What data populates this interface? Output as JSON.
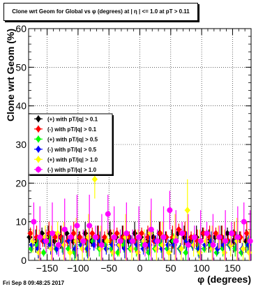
{
  "title": "Clone wrt Geom for Global vs φ (degrees) at | η | <= 1.0 at pT > 0.11",
  "timestamp": "Fri Sep  8 09:48:25 2017",
  "chart_data": {
    "type": "scatter",
    "xlabel": "φ (degrees)",
    "ylabel": "Clone wrt Geom (%)",
    "xlim": [
      -180,
      180
    ],
    "ylim": [
      0,
      60
    ],
    "x_ticks": [
      -150,
      -100,
      -50,
      0,
      50,
      100,
      150
    ],
    "y_ticks": [
      0,
      10,
      20,
      30,
      40,
      50,
      60
    ],
    "grid": true,
    "legend_position": "left-middle",
    "series": [
      {
        "name": "(+) with pT/|q| > 0.1",
        "color": "#000000",
        "marker": "diamond",
        "x": [
          -175,
          -165,
          -155,
          -145,
          -135,
          -125,
          -115,
          -105,
          -95,
          -85,
          -75,
          -65,
          -55,
          -45,
          -35,
          -25,
          -15,
          -5,
          5,
          15,
          25,
          35,
          45,
          55,
          65,
          75,
          85,
          95,
          105,
          115,
          125,
          135,
          145,
          155,
          165,
          175
        ],
        "y": [
          6,
          5,
          7,
          6,
          5,
          6,
          7,
          5,
          6,
          7,
          5,
          6,
          5,
          7,
          6,
          6,
          5,
          7,
          6,
          5,
          6,
          7,
          6,
          5,
          7,
          6,
          5,
          6,
          7,
          5,
          6,
          6,
          7,
          5,
          6,
          5
        ]
      },
      {
        "name": "(-) with pT/|q| > 0.1",
        "color": "#ff0000",
        "marker": "diamond",
        "x": [
          -175,
          -165,
          -155,
          -145,
          -135,
          -125,
          -115,
          -105,
          -95,
          -85,
          -75,
          -65,
          -55,
          -45,
          -35,
          -25,
          -15,
          -5,
          5,
          15,
          25,
          35,
          45,
          55,
          65,
          75,
          85,
          95,
          105,
          115,
          125,
          135,
          145,
          155,
          165,
          175
        ],
        "y": [
          7,
          6,
          5,
          7,
          6,
          6,
          5,
          7,
          6,
          5,
          7,
          6,
          6,
          5,
          7,
          6,
          6,
          5,
          7,
          6,
          5,
          7,
          6,
          6,
          8,
          7,
          6,
          5,
          7,
          6,
          7,
          6,
          5,
          7,
          6,
          7
        ]
      },
      {
        "name": "(+) with pT/|q| > 0.5",
        "color": "#00ff00",
        "marker": "diamond",
        "x": [
          -175,
          -165,
          -155,
          -145,
          -135,
          -125,
          -115,
          -105,
          -95,
          -85,
          -75,
          -65,
          -55,
          -45,
          -35,
          -25,
          -15,
          -5,
          5,
          15,
          25,
          35,
          45,
          55,
          65,
          75,
          85,
          95,
          105,
          115,
          125,
          135,
          145,
          155,
          165,
          175
        ],
        "y": [
          3,
          4,
          2,
          5,
          3,
          4,
          3,
          2,
          4,
          3,
          5,
          3,
          4,
          3,
          2,
          4,
          3,
          3,
          4,
          2,
          3,
          4,
          3,
          5,
          3,
          2,
          4,
          3,
          3,
          4,
          2,
          3,
          4,
          3,
          2,
          4
        ]
      },
      {
        "name": "(-) with pT/|q| > 0.5",
        "color": "#0000ff",
        "marker": "diamond",
        "x": [
          -175,
          -165,
          -155,
          -145,
          -135,
          -125,
          -115,
          -105,
          -95,
          -85,
          -75,
          -65,
          -55,
          -45,
          -35,
          -25,
          -15,
          -5,
          5,
          15,
          25,
          35,
          45,
          55,
          65,
          75,
          85,
          95,
          105,
          115,
          125,
          135,
          145,
          155,
          165,
          175
        ],
        "y": [
          4,
          3,
          5,
          4,
          3,
          4,
          5,
          3,
          4,
          3,
          4,
          5,
          3,
          4,
          4,
          3,
          5,
          4,
          3,
          4,
          5,
          3,
          4,
          4,
          3,
          5,
          4,
          3,
          4,
          5,
          3,
          4,
          4,
          5,
          3,
          4
        ]
      },
      {
        "name": "(+) with pT/|q| > 1.0",
        "color": "#ffff00",
        "marker": "diamond",
        "x": [
          -175,
          -165,
          -155,
          -145,
          -135,
          -125,
          -115,
          -105,
          -95,
          -85,
          -75,
          -65,
          -55,
          -45,
          -35,
          -25,
          -15,
          -5,
          5,
          15,
          25,
          35,
          45,
          55,
          65,
          75,
          85,
          95,
          105,
          115,
          125,
          135,
          145,
          155,
          165,
          175
        ],
        "y": [
          5,
          2,
          6,
          3,
          7,
          4,
          2,
          5,
          3,
          6,
          21,
          3,
          5,
          2,
          4,
          6,
          3,
          2,
          5,
          7,
          3,
          4,
          2,
          6,
          3,
          13,
          4,
          2,
          5,
          3,
          6,
          2,
          4,
          5,
          3,
          2
        ]
      },
      {
        "name": "(-) with pT/|q| > 1.0",
        "color": "#ff00ff",
        "marker": "circle",
        "x": [
          -175,
          -165,
          -155,
          -145,
          -135,
          -125,
          -115,
          -105,
          -95,
          -85,
          -75,
          -65,
          -55,
          -45,
          -35,
          -25,
          -15,
          -5,
          5,
          15,
          25,
          35,
          45,
          55,
          65,
          75,
          85,
          95,
          105,
          115,
          125,
          135,
          145,
          155,
          165,
          175
        ],
        "y": [
          10,
          6,
          5,
          7,
          4,
          8,
          6,
          9,
          5,
          9,
          6,
          4,
          12,
          6,
          5,
          7,
          5,
          6,
          4,
          8,
          5,
          6,
          13,
          5,
          7,
          4,
          6,
          5,
          7,
          4,
          6,
          5,
          7,
          6,
          10,
          5
        ]
      }
    ]
  }
}
